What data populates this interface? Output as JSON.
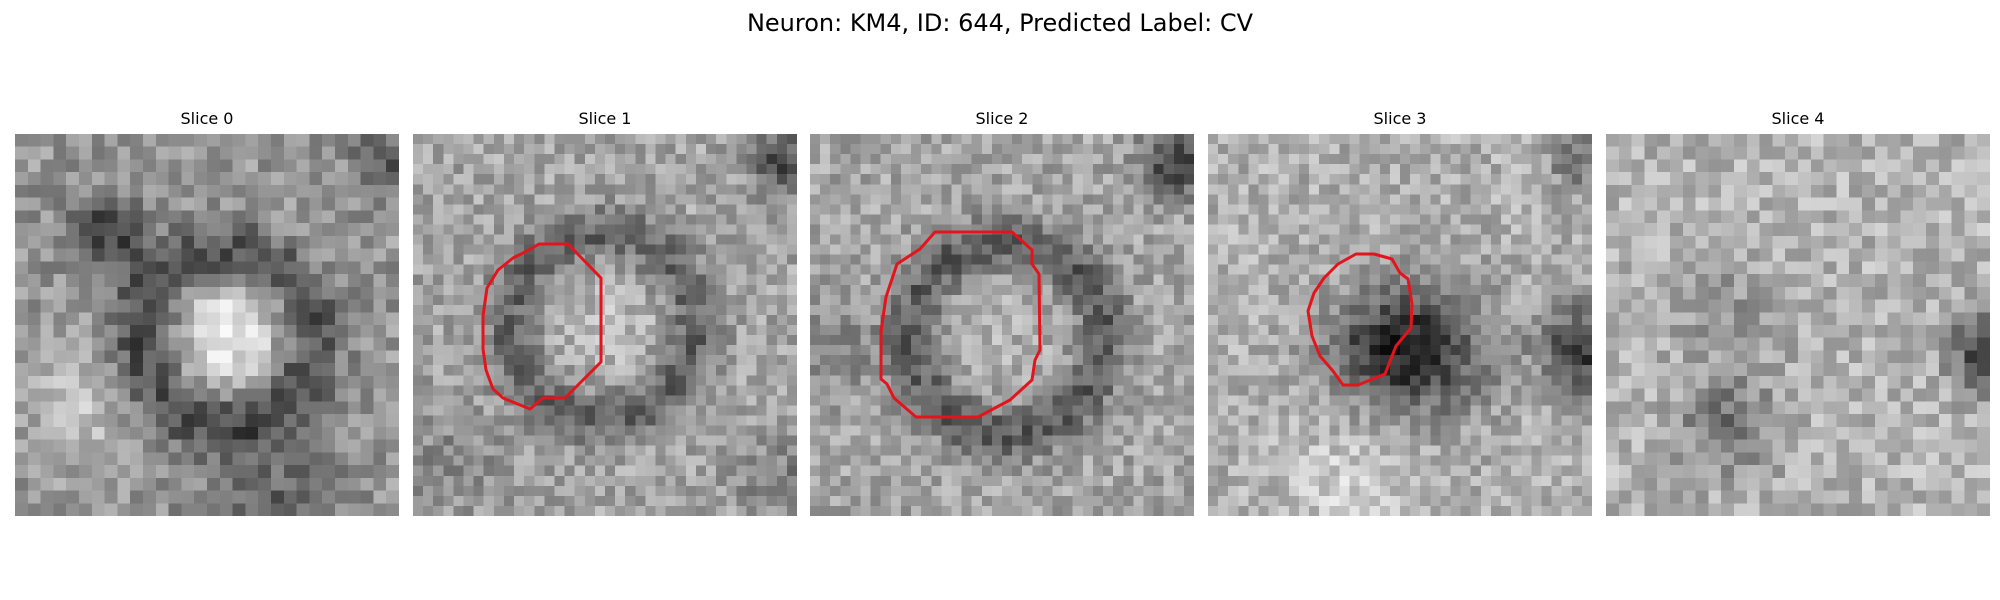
{
  "figure": {
    "title": "Neuron: KM4, ID: 644, Predicted Label: CV"
  },
  "slices": [
    {
      "title": "Slice 0",
      "has_contour": false
    },
    {
      "title": "Slice 1",
      "has_contour": true
    },
    {
      "title": "Slice 2",
      "has_contour": true
    },
    {
      "title": "Slice 3",
      "has_contour": true
    },
    {
      "title": "Slice 4",
      "has_contour": false
    }
  ],
  "colors": {
    "contour": "#e3141b",
    "colormap": "gray"
  }
}
